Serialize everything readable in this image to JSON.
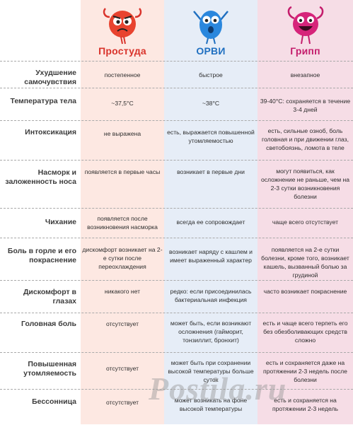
{
  "columns": [
    {
      "title": "Простуда",
      "mascot": "red-blob-mascot-icon",
      "color": "#d9332b"
    },
    {
      "title": "ОРВИ",
      "mascot": "blue-blob-mascot-icon",
      "color": "#1f6fc0"
    },
    {
      "title": "Грипп",
      "mascot": "magenta-blob-mascot-icon",
      "color": "#c41d6c"
    }
  ],
  "rows": [
    {
      "label": "Ухудшение самочувствия",
      "cold": "постепенное",
      "arvi": "быстрое",
      "flu": "внезапное"
    },
    {
      "label": "Температура тела",
      "cold": "~37,5°C",
      "arvi": "~38°C",
      "flu": "39-40°C: сохраняется в течение 3-4 дней"
    },
    {
      "label": "Интоксикация",
      "cold": "не выражена",
      "arvi": "есть, выражается повышенной утомляемостью",
      "flu": "есть, сильные озноб, боль головная и при движении глаз, светобоязнь, ломота в теле"
    },
    {
      "label": "Насморк и заложенность носа",
      "cold": "появляется в первые часы",
      "arvi": "возникает в первые дни",
      "flu": "могут появиться, как осложнение не раньше, чем на 2-3 сутки возникновения болезни"
    },
    {
      "label": "Чихание",
      "cold": "появляется после возникновения насморка",
      "arvi": "всегда ее сопровождает",
      "flu": "чаще всего отсутствует"
    },
    {
      "label": "Боль в горле и его покраснение",
      "cold": "дискомфорт возникает на 2-е сутки после переохлаждения",
      "arvi": "возникает наряду с кашлем и имеет выраженный характер",
      "flu": "появляется на 2-е сутки болезни, кроме того, возникает кашель, вызванный болью за грудиной"
    },
    {
      "label": "Дискомфорт в глазах",
      "cold": "никакого нет",
      "arvi": "редко: если присоединилась бактериальная инфекция",
      "flu": "часто возникает покраснение"
    },
    {
      "label": "Головная боль",
      "cold": "отсутствует",
      "arvi": "может быть, если возникают осложнения (гайморит, тонзиллит, бронхит)",
      "flu": "есть и чаще всего терпеть его без обезболивающих средств сложно"
    },
    {
      "label": "Повышенная утомляемость",
      "cold": "отсутствует",
      "arvi": "может быть при сохранении высокой температуры больше суток",
      "flu": "есть и сохраняется даже на протяжении 2-3 недель после болезни"
    },
    {
      "label": "Бессонница",
      "cold": "отсутствует",
      "arvi": "может возникать на фоне высокой температуры",
      "flu": "есть и сохраняется на протяжении 2-3 недель"
    }
  ],
  "watermark": "Postila.ru"
}
